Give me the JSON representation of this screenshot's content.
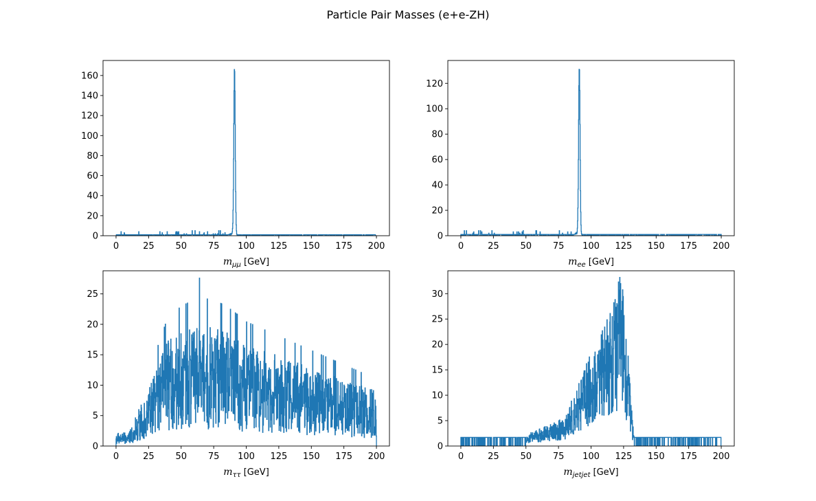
{
  "figure": {
    "title": "Particle Pair Masses (e+e-ZH)"
  },
  "chart_data": [
    {
      "type": "histogram",
      "xlabel_symbol": "m",
      "xlabel_sub": "μμ",
      "xlabel_unit": "[GeV]",
      "xlim": [
        -10,
        210
      ],
      "ylim": [
        0,
        175
      ],
      "xticks": [
        0,
        25,
        50,
        75,
        100,
        125,
        150,
        175,
        200
      ],
      "yticks": [
        0,
        20,
        40,
        60,
        80,
        100,
        120,
        140,
        160
      ],
      "color": "#1f77b4",
      "bins": [
        0,
        200,
        1000
      ],
      "shape": "resonance",
      "peak_center": 91.0,
      "peak_height": 166,
      "baseline": 0.6,
      "sparse_max": 5
    },
    {
      "type": "histogram",
      "xlabel_symbol": "m",
      "xlabel_sub": "ee",
      "xlabel_unit": "[GeV]",
      "xlim": [
        -10,
        210
      ],
      "ylim": [
        0,
        138
      ],
      "xticks": [
        0,
        25,
        50,
        75,
        100,
        125,
        150,
        175,
        200
      ],
      "yticks": [
        0,
        20,
        40,
        60,
        80,
        100,
        120
      ],
      "color": "#1f77b4",
      "bins": [
        0,
        200,
        1000
      ],
      "shape": "resonance",
      "peak_center": 91.0,
      "peak_height": 131,
      "baseline": 0.8,
      "sparse_max": 4
    },
    {
      "type": "histogram",
      "xlabel_symbol": "m",
      "xlabel_sub": "ττ",
      "xlabel_unit": "[GeV]",
      "xlim": [
        -10,
        210
      ],
      "ylim": [
        0,
        28.8
      ],
      "xticks": [
        0,
        25,
        50,
        75,
        100,
        125,
        150,
        175,
        200
      ],
      "yticks": [
        0,
        5,
        10,
        15,
        20,
        25
      ],
      "color": "#1f77b4",
      "bins": [
        0,
        200,
        1000
      ],
      "shape": "broad",
      "max_value": 27.6,
      "mode_center": 70,
      "typical_level": 9
    },
    {
      "type": "histogram",
      "xlabel_symbol": "m",
      "xlabel_sub": "jetjet",
      "xlabel_unit": "[GeV]",
      "xlim": [
        -10,
        210
      ],
      "ylim": [
        0,
        34.5
      ],
      "xticks": [
        0,
        25,
        50,
        75,
        100,
        125,
        150,
        175,
        200
      ],
      "yticks": [
        0,
        5,
        10,
        15,
        20,
        25,
        30
      ],
      "color": "#1f77b4",
      "bins": [
        0,
        200,
        1000
      ],
      "shape": "higgs",
      "max_value": 33.2,
      "peak_center": 122,
      "secondary_center": 90
    }
  ]
}
